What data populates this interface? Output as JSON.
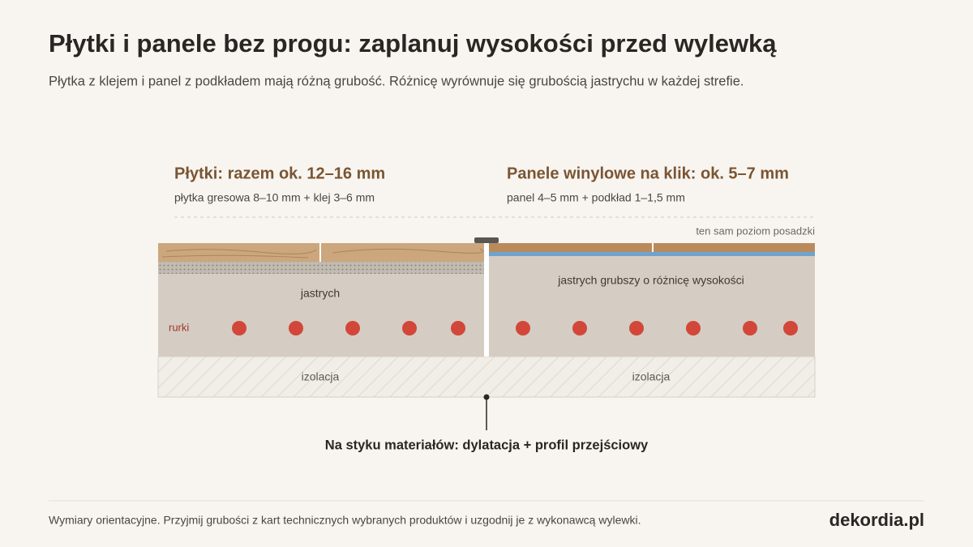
{
  "header": {
    "title": "Płytki i panele bez progu: zaplanuj wysokości przed wylewką",
    "subtitle": "Płytka z klejem i panel z podkładem mają różną grubość. Różnicę wyrównuje się grubością jastrychu w każdej strefie."
  },
  "zones": [
    {
      "title": "Płytki: razem ok. 12–16 mm",
      "detail": "płytka gresowa 8–10 mm + klej 3–6 mm",
      "screed": "jastrych",
      "insulation": "izolacja"
    },
    {
      "title": "Panele winylowe na klik: ok. 5–7 mm",
      "detail": "panel 4–5 mm + podkład 1–1,5 mm",
      "screed": "jastrych grubszy o różnicę wysokości",
      "insulation": "izolacja"
    }
  ],
  "level_note": "ten sam poziom posadzki",
  "pipes_label": "rurki",
  "joint_note": "Na styku materiałów: dylatacja + profil przejściowy",
  "footer": {
    "note": "Wymiary orientacyjne. Przyjmij grubości z kart technicznych wybranych produktów i uzgodnij je z wykonawcą wylewki.",
    "brand": "dekordia.pl"
  }
}
